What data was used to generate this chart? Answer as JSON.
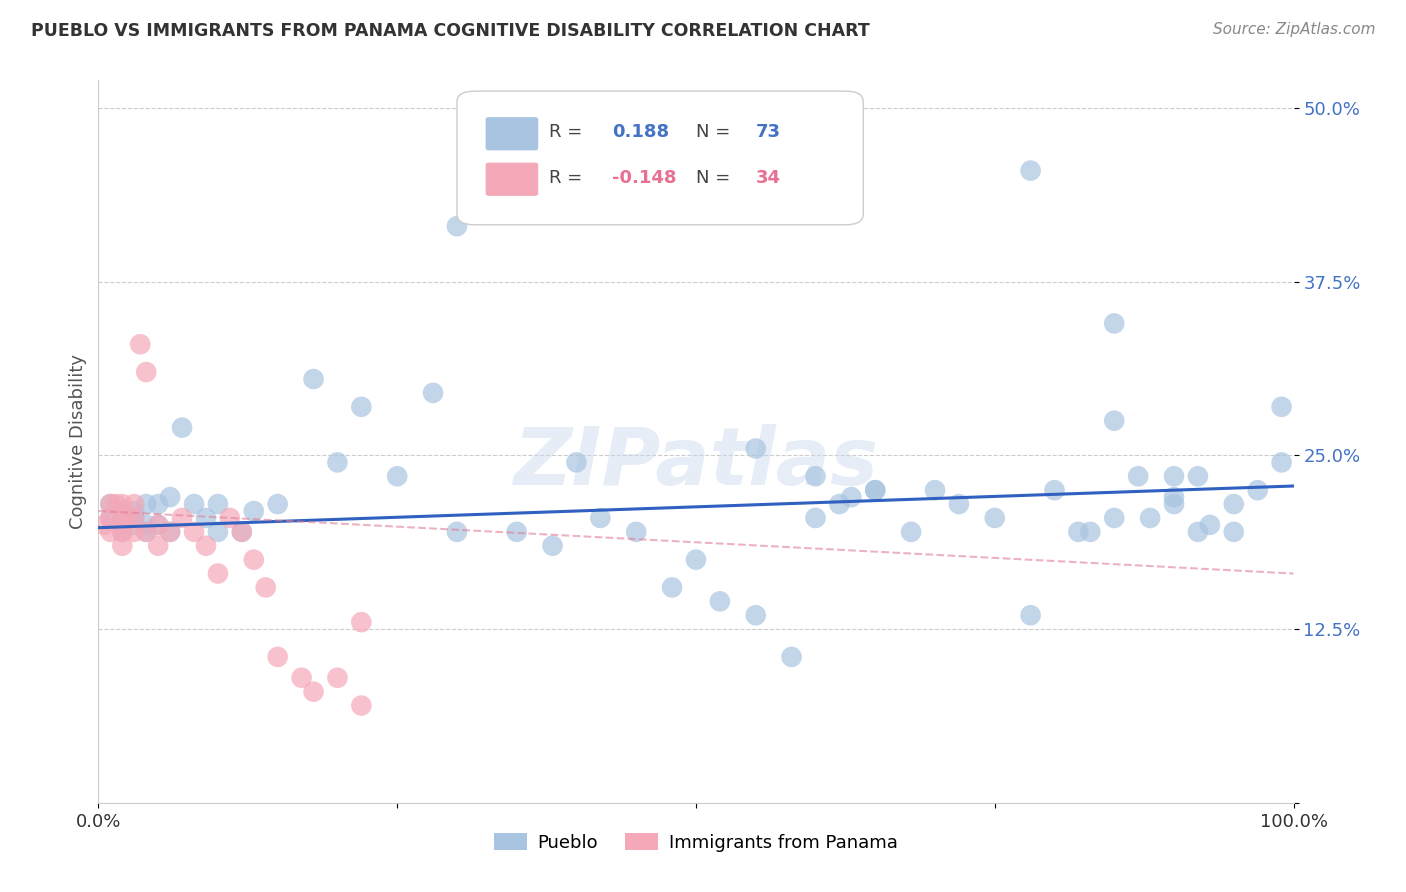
{
  "title": "PUEBLO VS IMMIGRANTS FROM PANAMA COGNITIVE DISABILITY CORRELATION CHART",
  "source": "Source: ZipAtlas.com",
  "ylabel": "Cognitive Disability",
  "yticks": [
    0.0,
    0.125,
    0.25,
    0.375,
    0.5
  ],
  "ytick_labels": [
    "",
    "12.5%",
    "25.0%",
    "37.5%",
    "50.0%"
  ],
  "xlim": [
    0.0,
    1.0
  ],
  "ylim": [
    0.0,
    0.52
  ],
  "pueblo_color": "#a8c4e0",
  "panama_color": "#f4a8b8",
  "trend_blue": "#3060c0",
  "trend_pink": "#e08098",
  "watermark": "ZIPatlas",
  "pueblo_x": [
    0.01,
    0.01,
    0.02,
    0.02,
    0.02,
    0.02,
    0.03,
    0.03,
    0.03,
    0.04,
    0.04,
    0.04,
    0.05,
    0.05,
    0.06,
    0.06,
    0.07,
    0.08,
    0.09,
    0.1,
    0.1,
    0.12,
    0.13,
    0.15,
    0.18,
    0.2,
    0.22,
    0.25,
    0.28,
    0.3,
    0.35,
    0.38,
    0.4,
    0.42,
    0.45,
    0.48,
    0.5,
    0.52,
    0.55,
    0.58,
    0.6,
    0.62,
    0.63,
    0.65,
    0.68,
    0.7,
    0.72,
    0.75,
    0.78,
    0.8,
    0.82,
    0.83,
    0.85,
    0.85,
    0.87,
    0.88,
    0.9,
    0.9,
    0.92,
    0.92,
    0.93,
    0.95,
    0.95,
    0.97,
    0.99,
    0.99,
    0.3,
    0.55,
    0.6,
    0.65,
    0.78,
    0.85,
    0.9
  ],
  "pueblo_y": [
    0.215,
    0.205,
    0.21,
    0.205,
    0.2,
    0.195,
    0.21,
    0.205,
    0.2,
    0.215,
    0.2,
    0.195,
    0.215,
    0.2,
    0.22,
    0.195,
    0.27,
    0.215,
    0.205,
    0.215,
    0.195,
    0.195,
    0.21,
    0.215,
    0.305,
    0.245,
    0.285,
    0.235,
    0.295,
    0.195,
    0.195,
    0.185,
    0.245,
    0.205,
    0.195,
    0.155,
    0.175,
    0.145,
    0.135,
    0.105,
    0.205,
    0.215,
    0.22,
    0.225,
    0.195,
    0.225,
    0.215,
    0.205,
    0.135,
    0.225,
    0.195,
    0.195,
    0.205,
    0.275,
    0.235,
    0.205,
    0.215,
    0.22,
    0.235,
    0.195,
    0.2,
    0.195,
    0.215,
    0.225,
    0.245,
    0.285,
    0.415,
    0.255,
    0.235,
    0.225,
    0.455,
    0.345,
    0.235
  ],
  "panama_x": [
    0.005,
    0.01,
    0.01,
    0.01,
    0.015,
    0.02,
    0.02,
    0.02,
    0.02,
    0.02,
    0.025,
    0.03,
    0.03,
    0.03,
    0.035,
    0.04,
    0.04,
    0.05,
    0.05,
    0.06,
    0.07,
    0.08,
    0.09,
    0.1,
    0.11,
    0.12,
    0.13,
    0.14,
    0.15,
    0.17,
    0.18,
    0.2,
    0.22,
    0.22
  ],
  "panama_y": [
    0.2,
    0.215,
    0.205,
    0.195,
    0.215,
    0.215,
    0.205,
    0.2,
    0.195,
    0.185,
    0.205,
    0.215,
    0.205,
    0.195,
    0.33,
    0.31,
    0.195,
    0.2,
    0.185,
    0.195,
    0.205,
    0.195,
    0.185,
    0.165,
    0.205,
    0.195,
    0.175,
    0.155,
    0.105,
    0.09,
    0.08,
    0.09,
    0.07,
    0.13
  ],
  "blue_trend_x0": 0.0,
  "blue_trend_x1": 1.0,
  "blue_trend_y0": 0.198,
  "blue_trend_y1": 0.228,
  "pink_trend_x0": 0.0,
  "pink_trend_x1": 1.0,
  "pink_trend_y0": 0.21,
  "pink_trend_y1": 0.165
}
